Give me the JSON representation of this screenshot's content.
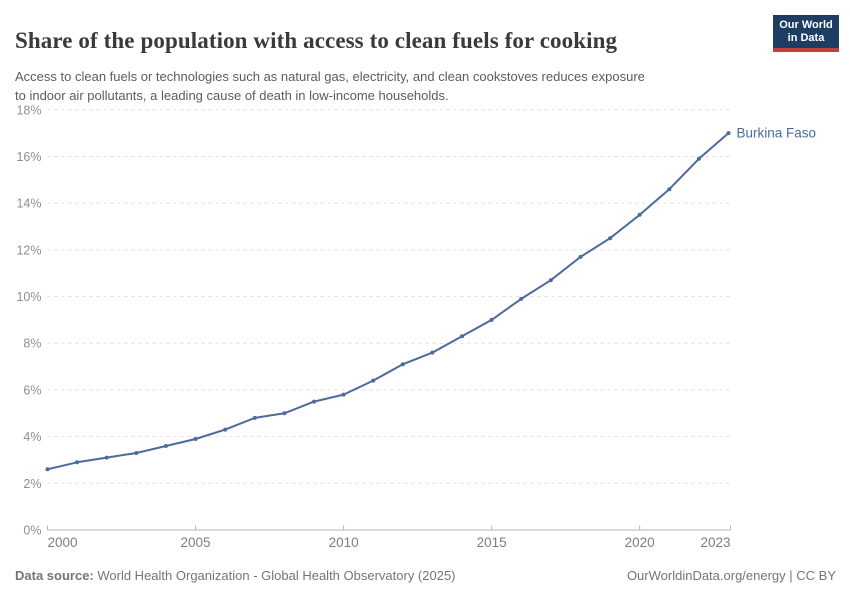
{
  "header": {
    "title": "Share of the population with access to clean fuels for cooking",
    "subtitle_lines": [
      "Access to clean fuels or technologies such as natural gas, electricity, and clean cookstoves reduces exposure",
      "to indoor air pollutants, a leading cause of death in low-income households."
    ],
    "logo": {
      "line1": "Our World",
      "line2": "in Data",
      "bg_color": "#1d3d63",
      "stripe_color": "#c1403f"
    }
  },
  "footer": {
    "datasource_label": "Data source:",
    "datasource_value": " World Health Organization - Global Health Observatory (2025)",
    "link": "OurWorldinData.org/energy | CC BY"
  },
  "chart_data": {
    "type": "line",
    "title": "Share of the population with access to clean fuels for cooking",
    "xlabel": "",
    "ylabel": "",
    "ylim": [
      0,
      18
    ],
    "xlim": [
      2000,
      2023
    ],
    "grid": "horizontal-dashed",
    "ytick_values": [
      0,
      2,
      4,
      6,
      8,
      10,
      12,
      14,
      16,
      18
    ],
    "ytick_labels": [
      "0%",
      "2%",
      "4%",
      "6%",
      "8%",
      "10%",
      "12%",
      "14%",
      "16%",
      "18%"
    ],
    "xtick_values": [
      2000,
      2005,
      2010,
      2015,
      2020,
      2023
    ],
    "xtick_labels": [
      "2000",
      "2005",
      "2010",
      "2015",
      "2020",
      "2023"
    ],
    "legend_position": "end-of-line-label",
    "series": [
      {
        "name": "Burkina Faso",
        "color": "#4c6a9c",
        "x": [
          2000,
          2001,
          2002,
          2003,
          2004,
          2005,
          2006,
          2007,
          2008,
          2009,
          2010,
          2011,
          2012,
          2013,
          2014,
          2015,
          2016,
          2017,
          2018,
          2019,
          2020,
          2021,
          2022,
          2023
        ],
        "values": [
          2.6,
          2.9,
          3.1,
          3.3,
          3.6,
          3.9,
          4.3,
          4.8,
          5.0,
          5.5,
          5.8,
          6.4,
          7.1,
          7.6,
          8.3,
          9.0,
          9.9,
          10.7,
          11.7,
          12.5,
          13.5,
          14.6,
          15.9,
          17.0
        ]
      }
    ],
    "colors": {
      "gridline": "#dedede",
      "axis": "#b5b5b5",
      "ytick_label": "#8f8f8f",
      "xtick_label": "#7e7e7e"
    }
  }
}
